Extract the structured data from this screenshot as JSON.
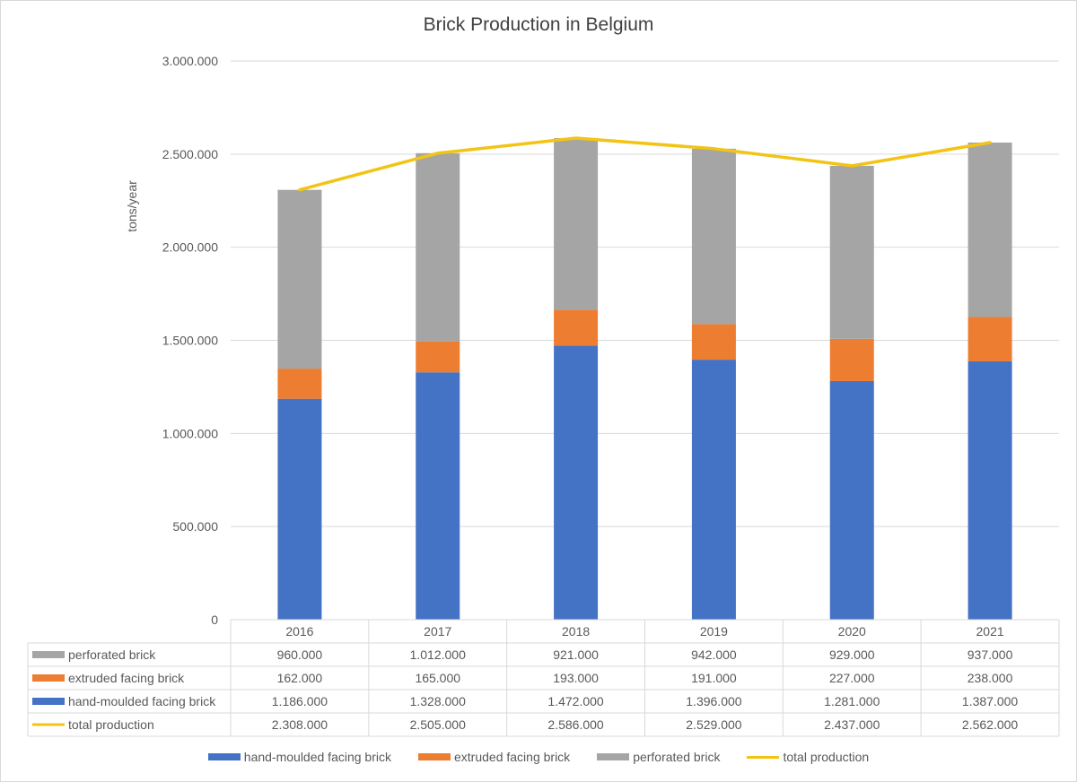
{
  "colors": {
    "hand_moulded": "#4472c4",
    "extruded": "#ed7d31",
    "perforated": "#a5a5a5",
    "total": "#f2c414",
    "grid": "#d9d9d9",
    "text": "#595959"
  },
  "chart_data": {
    "type": "bar",
    "stacked": true,
    "title": "Brick Production in Belgium",
    "xlabel": "",
    "ylabel": "tons/year",
    "ylim": [
      0,
      3000000
    ],
    "ytick_values": [
      0,
      500000,
      1000000,
      1500000,
      2000000,
      2500000,
      3000000
    ],
    "ytick_labels": [
      "0",
      "500.000",
      "1.000.000",
      "1.500.000",
      "2.000.000",
      "2.500.000",
      "3.000.000"
    ],
    "categories": [
      "2016",
      "2017",
      "2018",
      "2019",
      "2020",
      "2021"
    ],
    "grid": true,
    "legend_position": "bottom",
    "series": [
      {
        "name": "hand-moulded facing brick",
        "kind": "bar",
        "color_key": "hand_moulded",
        "values": [
          1186000,
          1328000,
          1472000,
          1396000,
          1281000,
          1387000
        ],
        "labels": [
          "1.186.000",
          "1.328.000",
          "1.472.000",
          "1.396.000",
          "1.281.000",
          "1.387.000"
        ]
      },
      {
        "name": "extruded facing brick",
        "kind": "bar",
        "color_key": "extruded",
        "values": [
          162000,
          165000,
          193000,
          191000,
          227000,
          238000
        ],
        "labels": [
          "162.000",
          "165.000",
          "193.000",
          "191.000",
          "227.000",
          "238.000"
        ]
      },
      {
        "name": "perforated brick",
        "kind": "bar",
        "color_key": "perforated",
        "values": [
          960000,
          1012000,
          921000,
          942000,
          929000,
          937000
        ],
        "labels": [
          "960.000",
          "1.012.000",
          "921.000",
          "942.000",
          "929.000",
          "937.000"
        ]
      },
      {
        "name": "total production",
        "kind": "line",
        "color_key": "total",
        "values": [
          2308000,
          2505000,
          2586000,
          2529000,
          2437000,
          2562000
        ],
        "labels": [
          "2.308.000",
          "2.505.000",
          "2.586.000",
          "2.529.000",
          "2.437.000",
          "2.562.000"
        ]
      }
    ],
    "table_row_order": [
      2,
      1,
      0,
      3
    ]
  }
}
